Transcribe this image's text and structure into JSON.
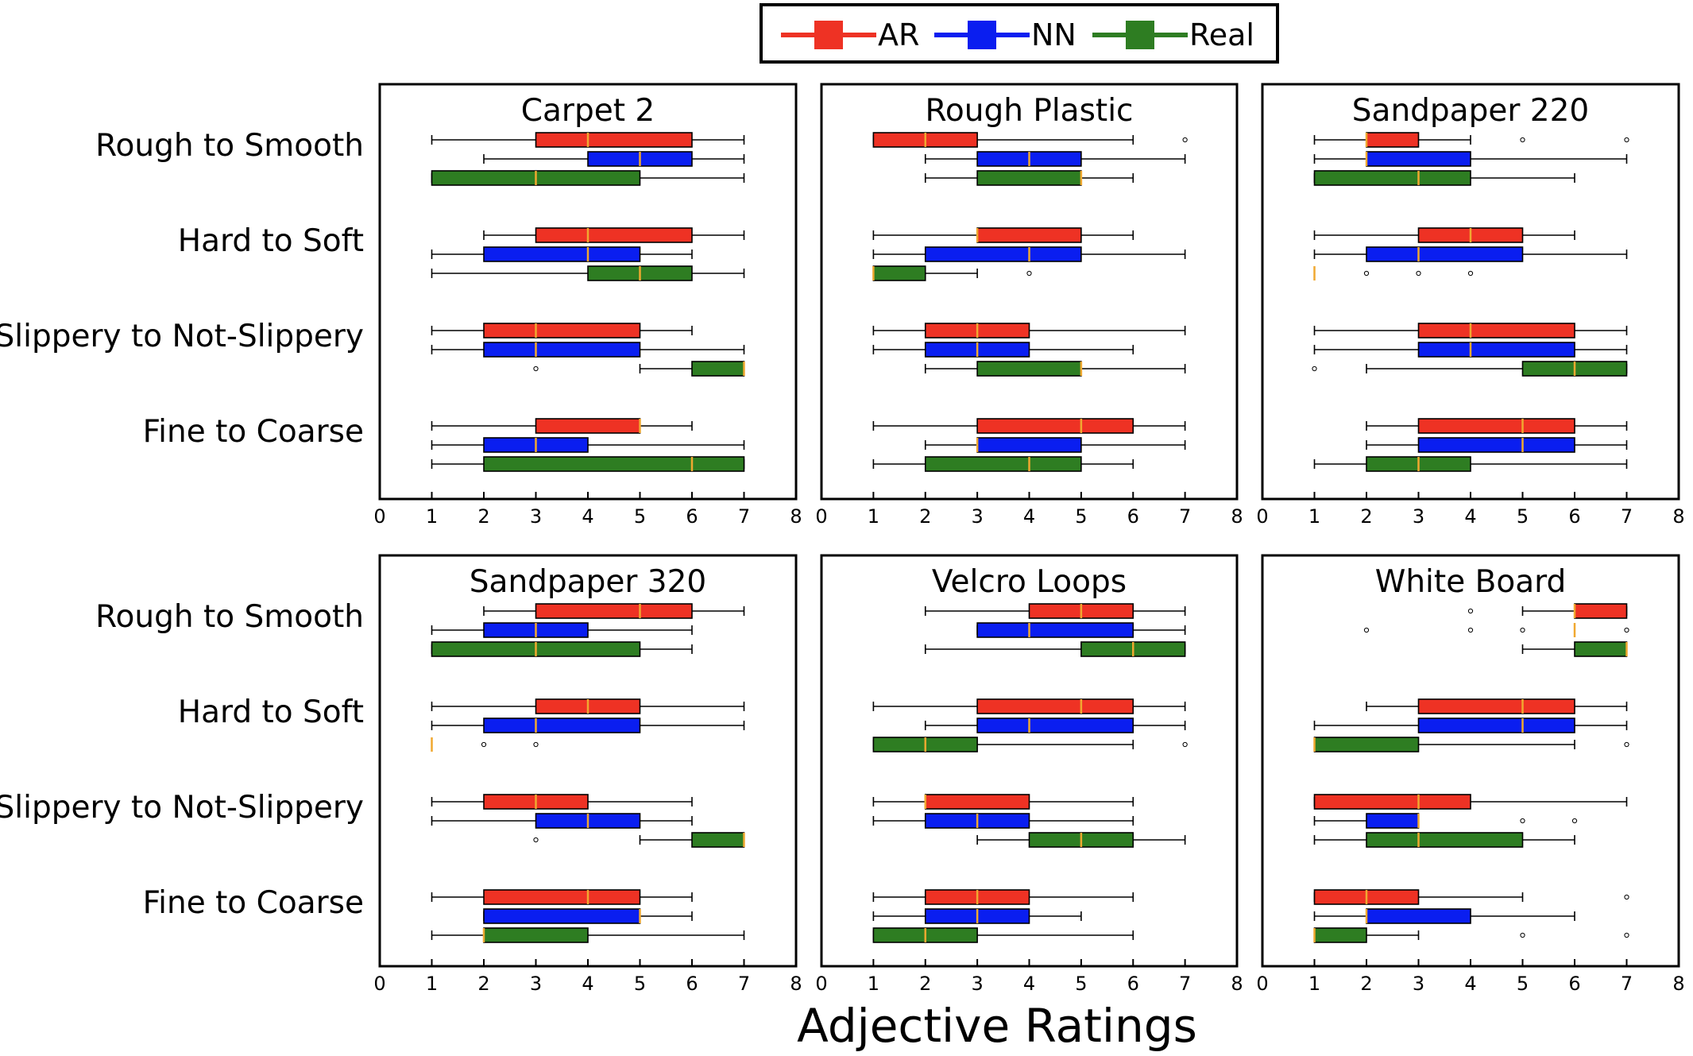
{
  "chart_data": {
    "type": "boxplot",
    "orientation": "horizontal",
    "xlabel": "Adjective Ratings",
    "xlim": [
      0,
      8
    ],
    "xticks": [
      "0",
      "1",
      "2",
      "3",
      "4",
      "5",
      "6",
      "7",
      "8"
    ],
    "categories": [
      "Rough to Smooth",
      "Hard to Soft",
      "Slippery to Not-Slippery",
      "Fine to Coarse"
    ],
    "legend": [
      {
        "name": "AR",
        "color": "#ee3224"
      },
      {
        "name": "NN",
        "color": "#0a1ef0"
      },
      {
        "name": "Real",
        "color": "#2e7d22"
      }
    ],
    "median_color": "#f0a830",
    "panels": [
      {
        "title": "Carpet 2",
        "groups": [
          [
            {
              "wl": 1,
              "q1": 3,
              "med": 4,
              "q3": 6,
              "wh": 7,
              "out": []
            },
            {
              "wl": 2,
              "q1": 4,
              "med": 5,
              "q3": 6,
              "wh": 7,
              "out": []
            },
            {
              "wl": 1,
              "q1": 1,
              "med": 3,
              "q3": 5,
              "wh": 7,
              "out": []
            }
          ],
          [
            {
              "wl": 2,
              "q1": 3,
              "med": 4,
              "q3": 6,
              "wh": 7,
              "out": []
            },
            {
              "wl": 1,
              "q1": 2,
              "med": 4,
              "q3": 5,
              "wh": 6,
              "out": []
            },
            {
              "wl": 1,
              "q1": 4,
              "med": 5,
              "q3": 6,
              "wh": 7,
              "out": []
            }
          ],
          [
            {
              "wl": 1,
              "q1": 2,
              "med": 3,
              "q3": 5,
              "wh": 6,
              "out": []
            },
            {
              "wl": 1,
              "q1": 2,
              "med": 3,
              "q3": 5,
              "wh": 7,
              "out": []
            },
            {
              "wl": 5,
              "q1": 6,
              "med": 7,
              "q3": 7,
              "wh": 7,
              "out": [
                3
              ]
            }
          ],
          [
            {
              "wl": 1,
              "q1": 3,
              "med": 5,
              "q3": 5,
              "wh": 6,
              "out": []
            },
            {
              "wl": 1,
              "q1": 2,
              "med": 3,
              "q3": 4,
              "wh": 7,
              "out": []
            },
            {
              "wl": 1,
              "q1": 2,
              "med": 6,
              "q3": 7,
              "wh": 7,
              "out": []
            }
          ]
        ]
      },
      {
        "title": "Rough Plastic",
        "groups": [
          [
            {
              "wl": 1,
              "q1": 1,
              "med": 2,
              "q3": 3,
              "wh": 6,
              "out": [
                7
              ]
            },
            {
              "wl": 2,
              "q1": 3,
              "med": 4,
              "q3": 5,
              "wh": 7,
              "out": []
            },
            {
              "wl": 2,
              "q1": 3,
              "med": 5,
              "q3": 5,
              "wh": 6,
              "out": []
            }
          ],
          [
            {
              "wl": 1,
              "q1": 3,
              "med": 3,
              "q3": 5,
              "wh": 6,
              "out": []
            },
            {
              "wl": 1,
              "q1": 2,
              "med": 4,
              "q3": 5,
              "wh": 7,
              "out": []
            },
            {
              "wl": 1,
              "q1": 1,
              "med": 1,
              "q3": 2,
              "wh": 3,
              "out": [
                4
              ]
            }
          ],
          [
            {
              "wl": 1,
              "q1": 2,
              "med": 3,
              "q3": 4,
              "wh": 7,
              "out": []
            },
            {
              "wl": 1,
              "q1": 2,
              "med": 3,
              "q3": 4,
              "wh": 6,
              "out": []
            },
            {
              "wl": 2,
              "q1": 3,
              "med": 5,
              "q3": 5,
              "wh": 7,
              "out": []
            }
          ],
          [
            {
              "wl": 1,
              "q1": 3,
              "med": 5,
              "q3": 6,
              "wh": 7,
              "out": []
            },
            {
              "wl": 2,
              "q1": 3,
              "med": 3,
              "q3": 5,
              "wh": 7,
              "out": []
            },
            {
              "wl": 1,
              "q1": 2,
              "med": 4,
              "q3": 5,
              "wh": 6,
              "out": []
            }
          ]
        ]
      },
      {
        "title": "Sandpaper 220",
        "groups": [
          [
            {
              "wl": 1,
              "q1": 2,
              "med": 2,
              "q3": 3,
              "wh": 4,
              "out": [
                5,
                7
              ]
            },
            {
              "wl": 1,
              "q1": 2,
              "med": 2,
              "q3": 4,
              "wh": 7,
              "out": []
            },
            {
              "wl": 1,
              "q1": 1,
              "med": 3,
              "q3": 4,
              "wh": 6,
              "out": []
            }
          ],
          [
            {
              "wl": 1,
              "q1": 3,
              "med": 4,
              "q3": 5,
              "wh": 6,
              "out": []
            },
            {
              "wl": 1,
              "q1": 2,
              "med": 3,
              "q3": 5,
              "wh": 7,
              "out": []
            },
            {
              "wl": 1,
              "q1": 1,
              "med": 1,
              "q3": 1,
              "wh": 1,
              "out": [
                2,
                3,
                4
              ]
            }
          ],
          [
            {
              "wl": 1,
              "q1": 3,
              "med": 4,
              "q3": 6,
              "wh": 7,
              "out": []
            },
            {
              "wl": 1,
              "q1": 3,
              "med": 4,
              "q3": 6,
              "wh": 7,
              "out": []
            },
            {
              "wl": 2,
              "q1": 5,
              "med": 6,
              "q3": 7,
              "wh": 7,
              "out": [
                1
              ]
            }
          ],
          [
            {
              "wl": 2,
              "q1": 3,
              "med": 5,
              "q3": 6,
              "wh": 7,
              "out": []
            },
            {
              "wl": 2,
              "q1": 3,
              "med": 5,
              "q3": 6,
              "wh": 7,
              "out": []
            },
            {
              "wl": 1,
              "q1": 2,
              "med": 3,
              "q3": 4,
              "wh": 7,
              "out": []
            }
          ]
        ]
      },
      {
        "title": "Sandpaper 320",
        "groups": [
          [
            {
              "wl": 2,
              "q1": 3,
              "med": 5,
              "q3": 6,
              "wh": 7,
              "out": []
            },
            {
              "wl": 1,
              "q1": 2,
              "med": 3,
              "q3": 4,
              "wh": 6,
              "out": []
            },
            {
              "wl": 1,
              "q1": 1,
              "med": 3,
              "q3": 5,
              "wh": 6,
              "out": []
            }
          ],
          [
            {
              "wl": 1,
              "q1": 3,
              "med": 4,
              "q3": 5,
              "wh": 7,
              "out": []
            },
            {
              "wl": 1,
              "q1": 2,
              "med": 3,
              "q3": 5,
              "wh": 7,
              "out": []
            },
            {
              "wl": 1,
              "q1": 1,
              "med": 1,
              "q3": 1,
              "wh": 1,
              "out": [
                2,
                3
              ]
            }
          ],
          [
            {
              "wl": 1,
              "q1": 2,
              "med": 3,
              "q3": 4,
              "wh": 6,
              "out": []
            },
            {
              "wl": 1,
              "q1": 3,
              "med": 4,
              "q3": 5,
              "wh": 6,
              "out": []
            },
            {
              "wl": 5,
              "q1": 6,
              "med": 7,
              "q3": 7,
              "wh": 7,
              "out": [
                3
              ]
            }
          ],
          [
            {
              "wl": 1,
              "q1": 2,
              "med": 4,
              "q3": 5,
              "wh": 6,
              "out": []
            },
            {
              "wl": 2,
              "q1": 2,
              "med": 5,
              "q3": 5,
              "wh": 6,
              "out": []
            },
            {
              "wl": 1,
              "q1": 2,
              "med": 2,
              "q3": 4,
              "wh": 7,
              "out": []
            }
          ]
        ]
      },
      {
        "title": "Velcro Loops",
        "groups": [
          [
            {
              "wl": 2,
              "q1": 4,
              "med": 5,
              "q3": 6,
              "wh": 7,
              "out": []
            },
            {
              "wl": 3,
              "q1": 3,
              "med": 4,
              "q3": 6,
              "wh": 7,
              "out": []
            },
            {
              "wl": 2,
              "q1": 5,
              "med": 6,
              "q3": 7,
              "wh": 7,
              "out": []
            }
          ],
          [
            {
              "wl": 1,
              "q1": 3,
              "med": 5,
              "q3": 6,
              "wh": 7,
              "out": []
            },
            {
              "wl": 2,
              "q1": 3,
              "med": 4,
              "q3": 6,
              "wh": 7,
              "out": []
            },
            {
              "wl": 1,
              "q1": 1,
              "med": 2,
              "q3": 3,
              "wh": 6,
              "out": [
                7
              ]
            }
          ],
          [
            {
              "wl": 1,
              "q1": 2,
              "med": 2,
              "q3": 4,
              "wh": 6,
              "out": []
            },
            {
              "wl": 1,
              "q1": 2,
              "med": 3,
              "q3": 4,
              "wh": 6,
              "out": []
            },
            {
              "wl": 3,
              "q1": 4,
              "med": 5,
              "q3": 6,
              "wh": 7,
              "out": []
            }
          ],
          [
            {
              "wl": 1,
              "q1": 2,
              "med": 3,
              "q3": 4,
              "wh": 6,
              "out": []
            },
            {
              "wl": 1,
              "q1": 2,
              "med": 3,
              "q3": 4,
              "wh": 5,
              "out": []
            },
            {
              "wl": 1,
              "q1": 1,
              "med": 2,
              "q3": 3,
              "wh": 6,
              "out": []
            }
          ]
        ]
      },
      {
        "title": "White Board",
        "groups": [
          [
            {
              "wl": 5,
              "q1": 6,
              "med": 6,
              "q3": 7,
              "wh": 7,
              "out": [
                4
              ]
            },
            {
              "wl": 6,
              "q1": 6,
              "med": 6,
              "q3": 6,
              "wh": 6,
              "out": [
                2,
                4,
                5,
                7
              ]
            },
            {
              "wl": 5,
              "q1": 6,
              "med": 7,
              "q3": 7,
              "wh": 7,
              "out": []
            }
          ],
          [
            {
              "wl": 2,
              "q1": 3,
              "med": 5,
              "q3": 6,
              "wh": 7,
              "out": []
            },
            {
              "wl": 1,
              "q1": 3,
              "med": 5,
              "q3": 6,
              "wh": 7,
              "out": []
            },
            {
              "wl": 1,
              "q1": 1,
              "med": 1,
              "q3": 3,
              "wh": 6,
              "out": [
                7
              ]
            }
          ],
          [
            {
              "wl": 1,
              "q1": 1,
              "med": 3,
              "q3": 4,
              "wh": 7,
              "out": []
            },
            {
              "wl": 1,
              "q1": 2,
              "med": 3,
              "q3": 3,
              "wh": 3,
              "out": [
                5,
                6
              ]
            },
            {
              "wl": 1,
              "q1": 2,
              "med": 3,
              "q3": 5,
              "wh": 6,
              "out": []
            }
          ],
          [
            {
              "wl": 1,
              "q1": 1,
              "med": 2,
              "q3": 3,
              "wh": 5,
              "out": [
                7
              ]
            },
            {
              "wl": 1,
              "q1": 2,
              "med": 2,
              "q3": 4,
              "wh": 6,
              "out": []
            },
            {
              "wl": 1,
              "q1": 1,
              "med": 1,
              "q3": 2,
              "wh": 3,
              "out": [
                5,
                7
              ]
            }
          ]
        ]
      }
    ]
  }
}
